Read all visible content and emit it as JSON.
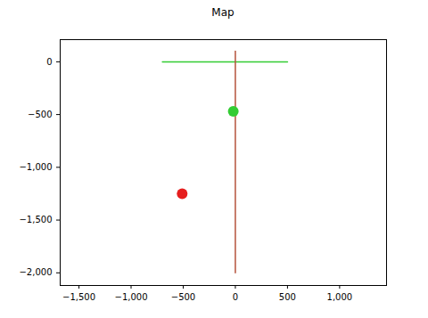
{
  "chart_data": {
    "type": "scatter",
    "title": "Map",
    "xlim": [
      -1680,
      1450
    ],
    "xticks": [
      -1500,
      -1000,
      -500,
      0,
      500,
      1000
    ],
    "ylim": [
      -2120,
      210
    ],
    "yticks": [
      -2000,
      -1500,
      -1000,
      -500,
      0
    ],
    "grid": false,
    "series": [
      {
        "type": "line",
        "color": "#33cc33",
        "x": [
          -700,
          500
        ],
        "values": [
          0,
          0
        ]
      },
      {
        "type": "line",
        "color": "#b5523b",
        "x": [
          0,
          0
        ],
        "values": [
          100,
          -2000
        ]
      },
      {
        "type": "scatter",
        "color": "#33cc33",
        "marker": "circle",
        "x": [
          -20
        ],
        "values": [
          -470
        ]
      },
      {
        "type": "scatter",
        "color": "#e61e1e",
        "marker": "circle",
        "x": [
          -510
        ],
        "values": [
          -1250
        ]
      }
    ]
  }
}
